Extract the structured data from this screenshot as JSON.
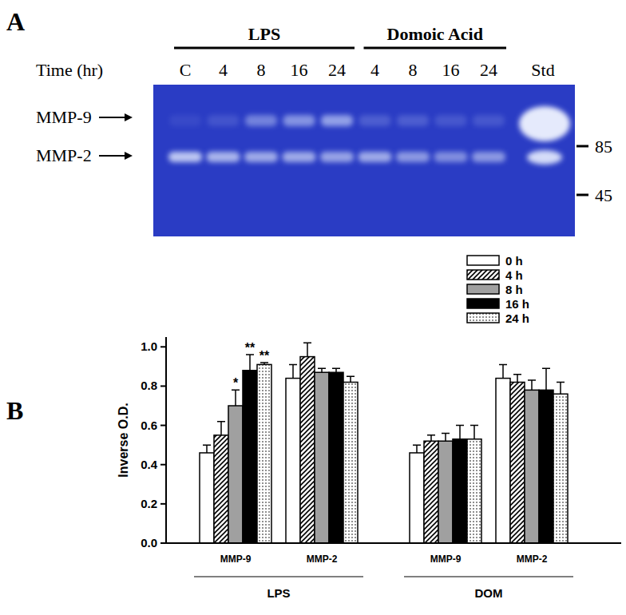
{
  "panels": {
    "a": "A",
    "b": "B"
  },
  "gel": {
    "time_label": "Time (hr)",
    "treatments": [
      {
        "label": "LPS",
        "lanes": [
          "C",
          "4",
          "8",
          "16",
          "24"
        ]
      },
      {
        "label": "Domoic Acid",
        "lanes": [
          "4",
          "8",
          "16",
          "24"
        ]
      }
    ],
    "standard_lane": "Std",
    "bands": [
      "MMP-9",
      "MMP-2"
    ],
    "markers": [
      85,
      45
    ]
  },
  "chart_data": {
    "type": "bar",
    "ylabel": "Inverse O.D.",
    "categories": [
      "MMP-9",
      "MMP-2",
      "MMP-9",
      "MMP-2"
    ],
    "category_groups": [
      {
        "label": "LPS",
        "span": 2
      },
      {
        "label": "DOM",
        "span": 2
      }
    ],
    "ylim": [
      0,
      1.05
    ],
    "yticks": [
      {
        "value": 0,
        "label": "0.0"
      },
      {
        "value": 0.2,
        "label": "0.2"
      },
      {
        "value": 0.4,
        "label": "0.4"
      },
      {
        "value": 0.6,
        "label": "0.6"
      },
      {
        "value": 0.8,
        "label": "0.8"
      },
      {
        "value": 1,
        "label": "1.0"
      }
    ],
    "legend": "top-right",
    "series": [
      {
        "name": "0 h",
        "color": "#ffffff",
        "values": [
          0.46,
          0.84,
          0.46,
          0.84
        ],
        "errors": [
          0.04,
          0.07,
          0.04,
          0.07
        ],
        "significance": [
          null,
          null,
          null,
          null
        ]
      },
      {
        "name": "4 h",
        "color": "#ffffff",
        "values": [
          0.55,
          0.95,
          0.52,
          0.82
        ],
        "errors": [
          0.07,
          0.07,
          0.03,
          0.04
        ],
        "significance": [
          null,
          null,
          null,
          null
        ]
      },
      {
        "name": "8 h",
        "color": "#a0a0a0",
        "values": [
          0.7,
          0.87,
          0.52,
          0.78
        ],
        "errors": [
          0.08,
          0.02,
          0.04,
          0.05
        ],
        "significance": [
          "*",
          null,
          null,
          null
        ]
      },
      {
        "name": "16 h",
        "color": "#000000",
        "values": [
          0.88,
          0.87,
          0.53,
          0.78
        ],
        "errors": [
          0.08,
          0.02,
          0.07,
          0.11
        ],
        "significance": [
          "**",
          null,
          null,
          null
        ]
      },
      {
        "name": "24 h",
        "color": "#ffffff",
        "values": [
          0.91,
          0.82,
          0.53,
          0.76
        ],
        "errors": [
          0.01,
          0.03,
          0.07,
          0.06
        ],
        "significance": [
          "**",
          null,
          null,
          null
        ]
      }
    ]
  }
}
